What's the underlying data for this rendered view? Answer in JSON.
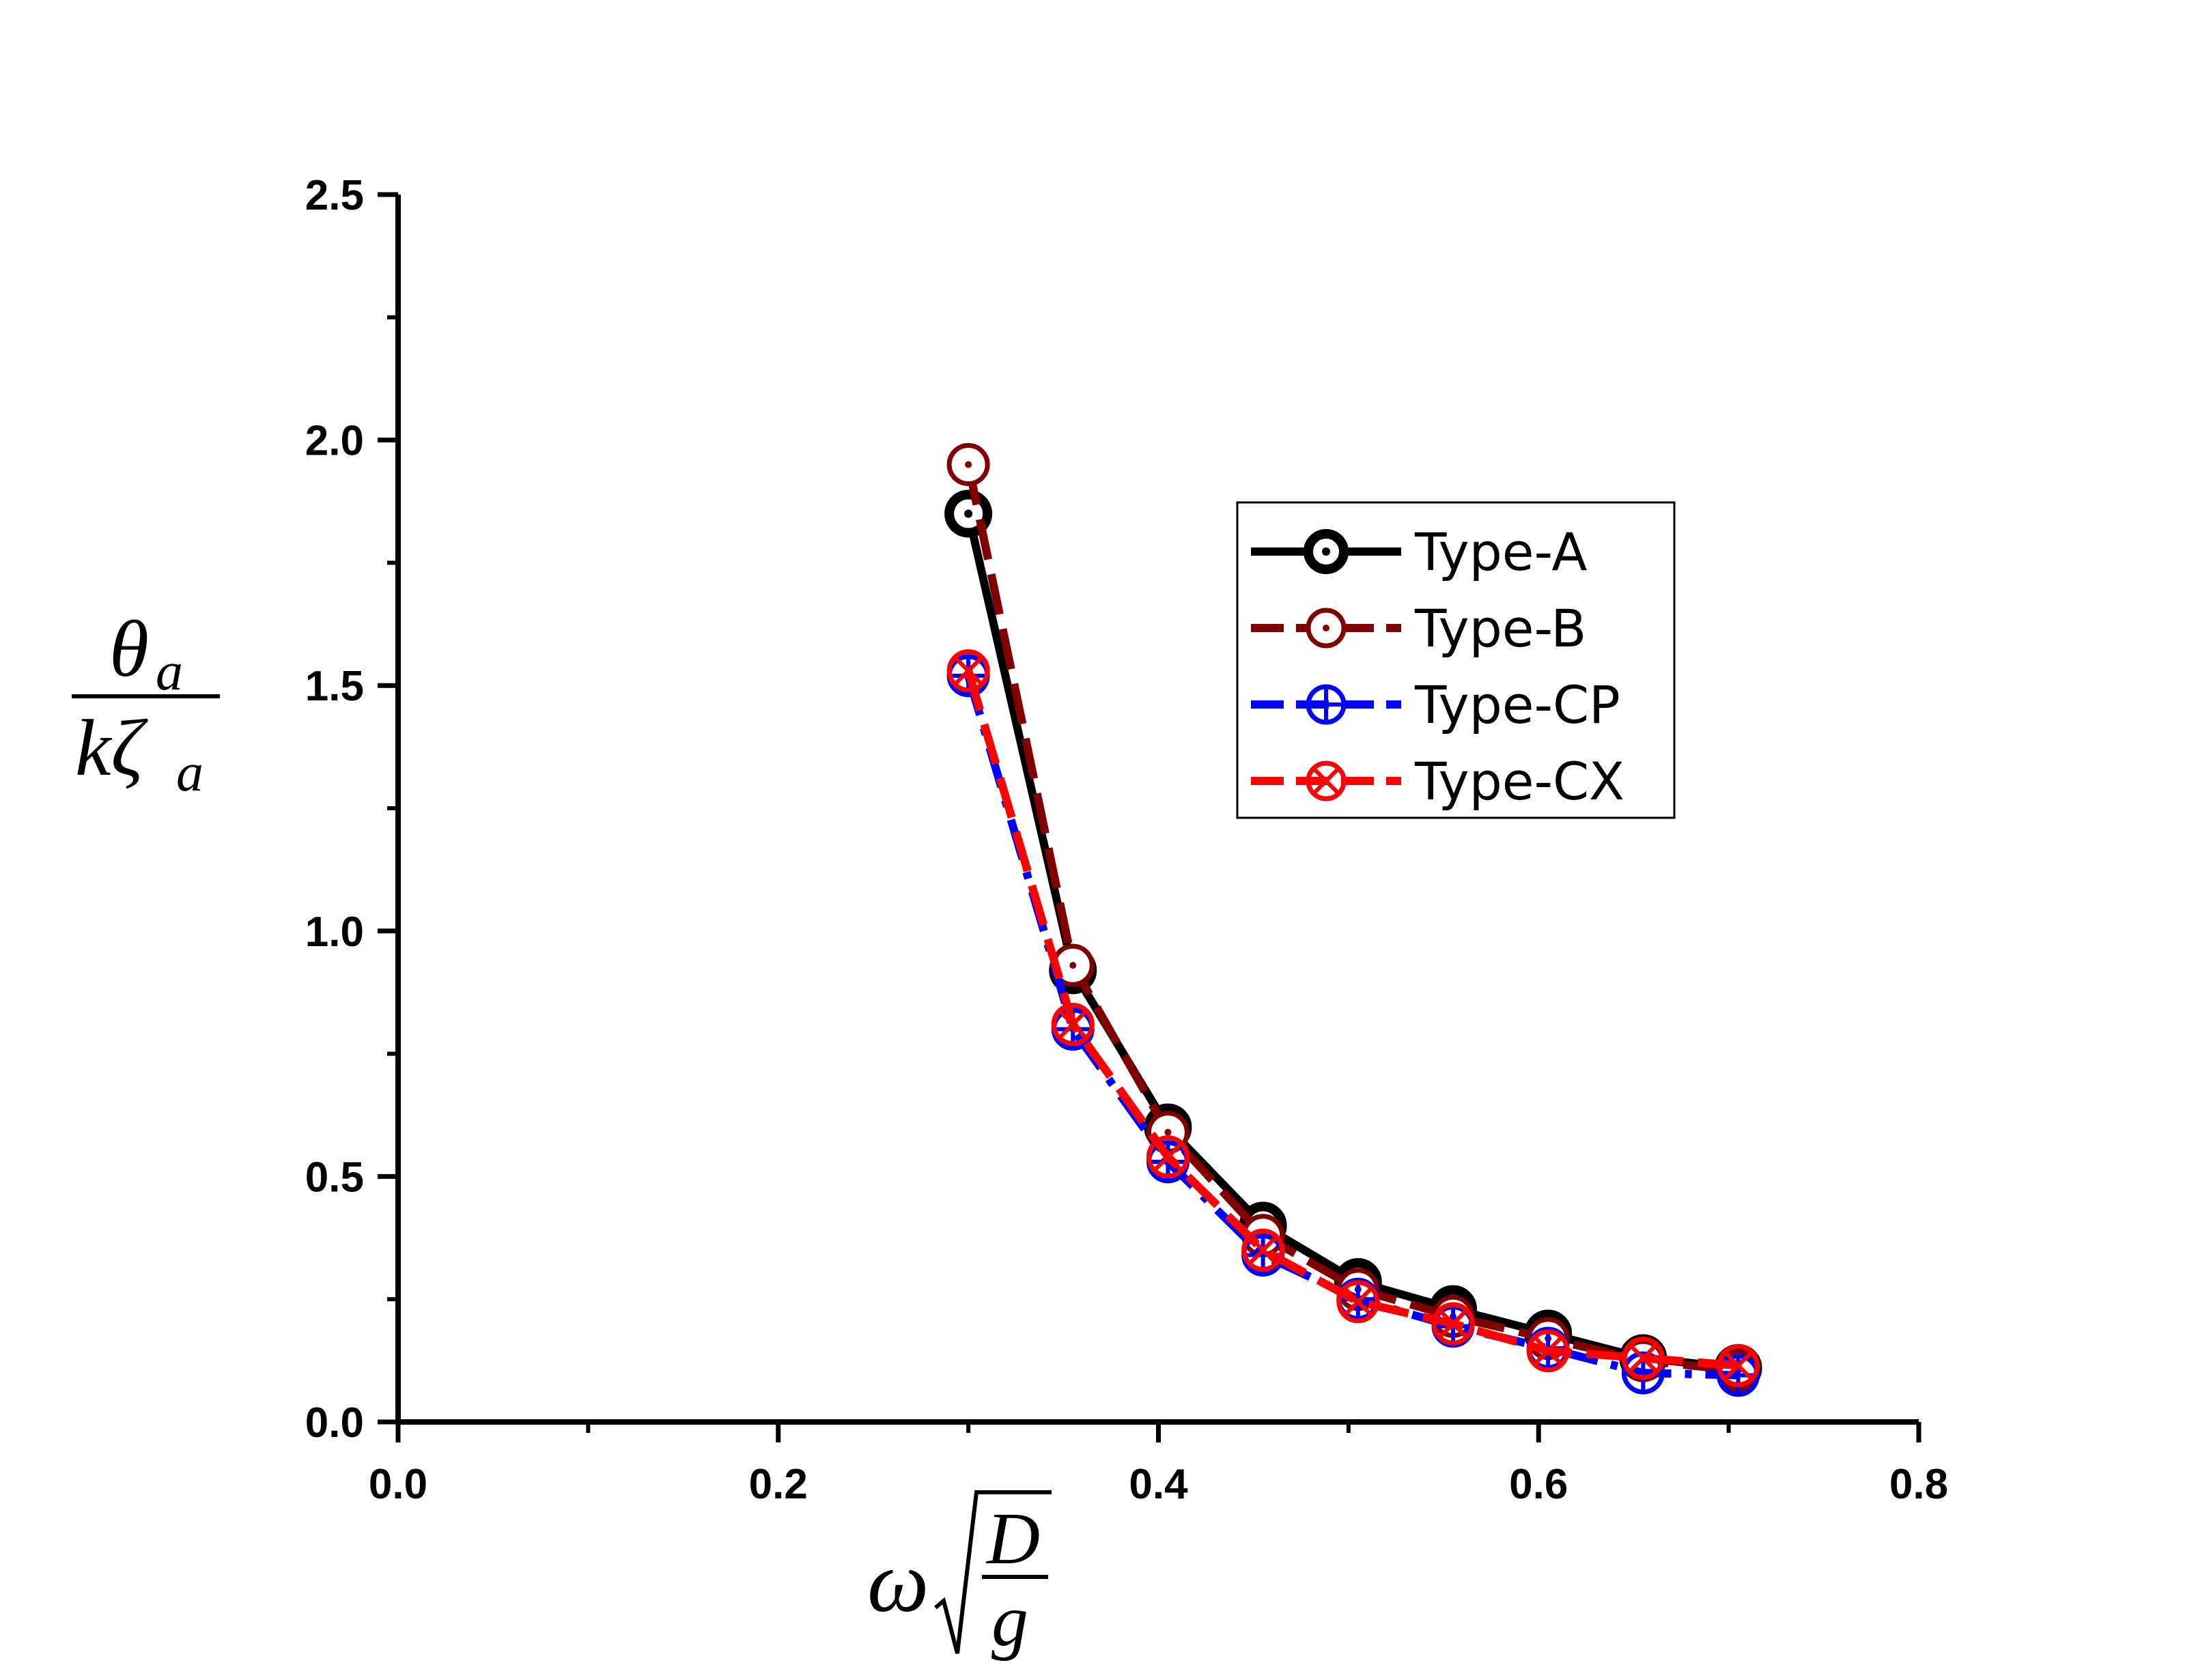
{
  "chart_data": {
    "type": "line",
    "xlim": [
      0.0,
      0.8
    ],
    "ylim": [
      0.0,
      2.5
    ],
    "x_ticks": [
      "0.0",
      "0.2",
      "0.4",
      "0.6",
      "0.8"
    ],
    "y_ticks": [
      "0.0",
      "0.5",
      "1.0",
      "1.5",
      "2.0",
      "2.5"
    ],
    "xlabel": {
      "symbol": "ω",
      "numerator": "D",
      "denominator": "g"
    },
    "ylabel": {
      "numerator": "θ",
      "numerator_sub": "a",
      "denominator": "kζ",
      "denominator_sub": "a"
    },
    "grid": false,
    "legend_position": "upper-right",
    "series": [
      {
        "name": "Type-A",
        "color": "#000000",
        "marker": "dot-circle",
        "dash": "solid",
        "x": [
          0.3,
          0.355,
          0.405,
          0.455,
          0.505,
          0.555,
          0.605,
          0.655,
          0.705
        ],
        "y": [
          1.85,
          0.92,
          0.6,
          0.4,
          0.285,
          0.23,
          0.18,
          0.13,
          0.11
        ]
      },
      {
        "name": "Type-B",
        "color": "#800000",
        "marker": "dot-circle-hollow",
        "dash": "dash",
        "x": [
          0.3,
          0.355,
          0.405,
          0.455,
          0.505,
          0.555,
          0.605,
          0.655,
          0.705
        ],
        "y": [
          1.95,
          0.93,
          0.59,
          0.38,
          0.27,
          0.215,
          0.17,
          0.125,
          0.105
        ]
      },
      {
        "name": "Type-CP",
        "color": "#0000ff",
        "marker": "circle-plus",
        "dash": "dashdot",
        "x": [
          0.3,
          0.355,
          0.405,
          0.455,
          0.505,
          0.555,
          0.605,
          0.655,
          0.705
        ],
        "y": [
          1.52,
          0.8,
          0.53,
          0.34,
          0.25,
          0.195,
          0.15,
          0.1,
          0.095
        ]
      },
      {
        "name": "Type-CX",
        "color": "#ff0000",
        "marker": "circle-x",
        "dash": "dash",
        "x": [
          0.3,
          0.355,
          0.405,
          0.455,
          0.505,
          0.555,
          0.605,
          0.655,
          0.705
        ],
        "y": [
          1.53,
          0.81,
          0.54,
          0.35,
          0.245,
          0.2,
          0.145,
          0.13,
          0.115
        ]
      }
    ]
  }
}
